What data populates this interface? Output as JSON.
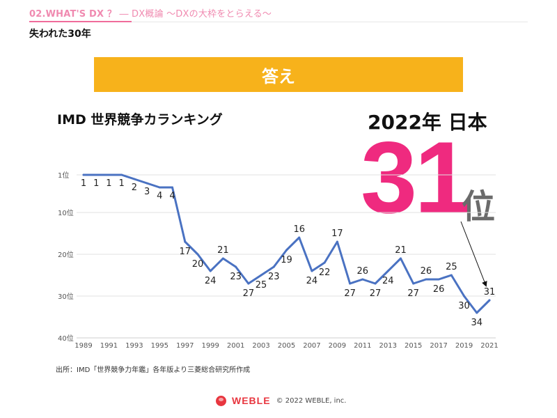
{
  "header": {
    "section": "02.WHAT'S DX ？",
    "title": " ― DX概論 ～DXの大枠をとらえる～"
  },
  "subtitle": "失われた30年",
  "answer_label": "答え",
  "headline": {
    "year_country": "2022年 日本",
    "rank_value": "31",
    "rank_unit": "位"
  },
  "source_note": "出所：IMD「世界競争力年鑑」各年版より三菱総合研究所作成",
  "footer": {
    "logo_text": "WEBLE",
    "copyright": "© 2022 WEBLE, inc."
  },
  "colors": {
    "accent_pink": "#ef2a7f",
    "banner_orange": "#f7b21b",
    "line_blue": "#4a72c2",
    "logo_red": "#e8363f"
  },
  "chart_data": {
    "type": "line",
    "title": "IMD 世界競争カランキング",
    "xlabel": "",
    "ylabel": "",
    "y_inverted": true,
    "ylim": [
      1,
      40
    ],
    "y_ticks": [
      1,
      10,
      20,
      30,
      40
    ],
    "y_tick_labels": [
      "1位",
      "10位",
      "20位",
      "30位",
      "40位"
    ],
    "x_ticks": [
      1989,
      1991,
      1993,
      1995,
      1997,
      1999,
      2001,
      2003,
      2005,
      2007,
      2009,
      2011,
      2013,
      2015,
      2017,
      2019,
      2021
    ],
    "x": [
      1989,
      1990,
      1991,
      1992,
      1993,
      1994,
      1995,
      1996,
      1997,
      1998,
      1999,
      2000,
      2001,
      2002,
      2003,
      2004,
      2005,
      2006,
      2007,
      2008,
      2009,
      2010,
      2011,
      2012,
      2013,
      2014,
      2015,
      2016,
      2017,
      2018,
      2019,
      2020,
      2021
    ],
    "values": [
      1,
      1,
      1,
      1,
      2,
      3,
      4,
      4,
      17,
      20,
      24,
      21,
      23,
      27,
      25,
      23,
      19,
      16,
      24,
      22,
      17,
      27,
      26,
      27,
      24,
      21,
      27,
      26,
      26,
      25,
      30,
      34,
      31
    ],
    "grid": true
  }
}
